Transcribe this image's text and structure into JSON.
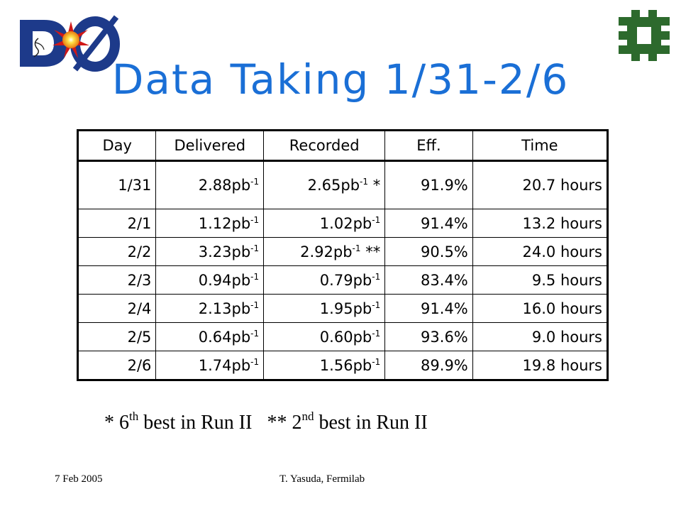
{
  "title": "Data Taking 1/31-2/6",
  "logos": {
    "left": {
      "icon": "dzero-logo-icon",
      "colors": {
        "navy": "#1d3a8a",
        "red": "#d01818",
        "yellow": "#ffd23a"
      }
    },
    "right": {
      "icon": "fermilab-logo-icon",
      "color": "#2d6a2d"
    }
  },
  "table": {
    "headers": {
      "day": "Day",
      "delivered": "Delivered",
      "recorded": "Recorded",
      "eff": "Eff.",
      "time": "Time"
    },
    "unit_base": "pb",
    "unit_exp": "-1",
    "rows": [
      {
        "day": "1/31",
        "delivered": "2.88",
        "recorded": "2.65",
        "recorded_mark": " *",
        "eff": "91.9%",
        "time": "20.7 hours"
      },
      {
        "day": "2/1",
        "delivered": "1.12",
        "recorded": "1.02",
        "recorded_mark": "",
        "eff": "91.4%",
        "time": "13.2 hours"
      },
      {
        "day": "2/2",
        "delivered": "3.23",
        "recorded": "2.92",
        "recorded_mark": " **",
        "eff": "90.5%",
        "time": "24.0 hours"
      },
      {
        "day": "2/3",
        "delivered": "0.94",
        "recorded": "0.79",
        "recorded_mark": "",
        "eff": "83.4%",
        "time": "9.5 hours"
      },
      {
        "day": "2/4",
        "delivered": "2.13",
        "recorded": "1.95",
        "recorded_mark": "",
        "eff": "91.4%",
        "time": "16.0 hours"
      },
      {
        "day": "2/5",
        "delivered": "0.64",
        "recorded": "0.60",
        "recorded_mark": "",
        "eff": "93.6%",
        "time": "9.0 hours"
      },
      {
        "day": "2/6",
        "delivered": "1.74",
        "recorded": "1.56",
        "recorded_mark": "",
        "eff": "89.9%",
        "time": "19.8 hours"
      }
    ]
  },
  "footnote": {
    "a_prefix": "* 6",
    "a_sup": "th",
    "a_suffix": " best in Run II",
    "b_prefix": "** 2",
    "b_sup": "nd",
    "b_suffix": " best in Run II"
  },
  "footer": {
    "date": "7 Feb 2005",
    "author": "T. Yasuda, Fermilab"
  },
  "colors": {
    "title": "#1a6fd6"
  }
}
